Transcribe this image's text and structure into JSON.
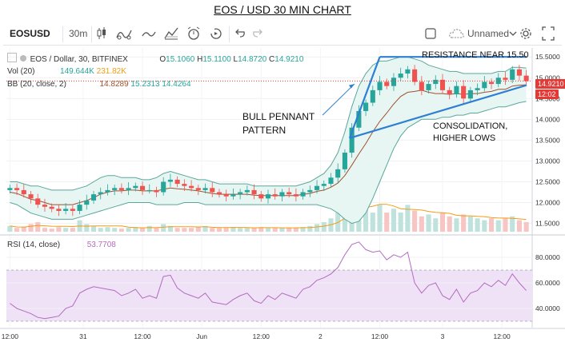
{
  "title": "EOS / USD 30 MIN CHART",
  "toolbar": {
    "symbol": "EOSUSD",
    "interval": "30m",
    "layout_name": "Unnamed",
    "icons": [
      "candles-icon",
      "indicators-icon",
      "line-icon",
      "compare-icon",
      "alert-icon",
      "replay-icon",
      "undo-icon",
      "redo-icon",
      "checkbox-icon",
      "cloud-icon",
      "chevron-down-icon",
      "gear-icon",
      "fullscreen-icon"
    ]
  },
  "legend": {
    "pair": "EOS / Dollar, 30, BITFINEX",
    "open_label": "O",
    "open": "15.1060",
    "high_label": "H",
    "high": "15.1100",
    "low_label": "L",
    "low": "14.8720",
    "close_label": "C",
    "close": "14.9210",
    "vol_label": "Vol (20)",
    "vol_1": "149.644K",
    "vol_2": "231.82K",
    "bb_label": "BB (20, close, 2)",
    "bb_1": "14.8289",
    "bb_2": "15.2313",
    "bb_3": "14.4264",
    "rsi_label": "RSI (14, close)",
    "rsi_value": "53.7708"
  },
  "price_tags": {
    "last": "14.9210",
    "countdown": "12:02"
  },
  "annotations": {
    "resistance": "RESISTANCE NEAR 15.50",
    "pennant_1": "BULL PENNANT",
    "pennant_2": "PATTERN",
    "consolidation_1": "CONSOLIDATION,",
    "consolidation_2": "HIGHER LOWS"
  },
  "colors": {
    "up": "#26a69a",
    "down": "#ef5350",
    "bb_fill": "#e7f5f3",
    "bb_band": "#5aa79c",
    "basis": "#a0522d",
    "vol_ma": "#f39c12",
    "rsi_line": "#b36cc0",
    "rsi_band": "#efe1f6",
    "annot_line": "#2e7fd1",
    "last_price": "#e53935"
  },
  "chart_data": [
    {
      "type": "candlestick",
      "title": "EOS / USD 30 MIN CHART",
      "series_label": "EOS / Dollar, 30, BITFINEX",
      "ylim": [
        11.3,
        15.6
      ],
      "y_ticks": [
        "15.5000",
        "15.0000",
        "14.5000",
        "14.0000",
        "13.5000",
        "13.0000",
        "12.5000",
        "12.0000",
        "11.5000"
      ],
      "x_ticks": [
        "12:00",
        "31",
        "12:00",
        "Jun",
        "12:00",
        "2",
        "12:00",
        "3",
        "12:00"
      ],
      "close": [
        12.35,
        12.3,
        12.2,
        12.1,
        11.95,
        11.9,
        11.85,
        11.8,
        11.85,
        11.8,
        11.95,
        12.05,
        12.2,
        12.25,
        12.3,
        12.35,
        12.3,
        12.35,
        12.4,
        12.3,
        12.3,
        12.25,
        12.5,
        12.55,
        12.45,
        12.4,
        12.35,
        12.3,
        12.35,
        12.25,
        12.2,
        12.15,
        12.2,
        12.25,
        12.3,
        12.2,
        12.1,
        12.2,
        12.15,
        12.25,
        12.2,
        12.15,
        12.25,
        12.3,
        12.4,
        12.45,
        12.6,
        12.8,
        13.2,
        13.8,
        14.2,
        14.4,
        14.7,
        14.9,
        14.8,
        15.0,
        15.1,
        15.2,
        14.9,
        14.7,
        14.85,
        14.95,
        14.7,
        14.6,
        14.8,
        14.5,
        14.7,
        14.75,
        14.9,
        14.85,
        15.0,
        14.95,
        15.2,
        15.05,
        14.92
      ],
      "bb_upper": [
        12.5,
        12.5,
        12.45,
        12.4,
        12.4,
        12.35,
        12.3,
        12.3,
        12.3,
        12.3,
        12.35,
        12.4,
        12.5,
        12.6,
        12.65,
        12.65,
        12.6,
        12.6,
        12.6,
        12.55,
        12.55,
        12.6,
        12.7,
        12.75,
        12.7,
        12.65,
        12.6,
        12.55,
        12.55,
        12.5,
        12.45,
        12.45,
        12.45,
        12.45,
        12.45,
        12.4,
        12.4,
        12.4,
        12.4,
        12.4,
        12.4,
        12.4,
        12.45,
        12.5,
        12.6,
        12.7,
        12.9,
        13.2,
        13.7,
        14.3,
        14.8,
        15.1,
        15.3,
        15.4,
        15.4,
        15.45,
        15.5,
        15.5,
        15.45,
        15.4,
        15.3,
        15.25,
        15.2,
        15.15,
        15.15,
        15.1,
        15.1,
        15.1,
        15.1,
        15.1,
        15.15,
        15.15,
        15.25,
        15.25,
        15.23
      ],
      "bb_lower": [
        12.0,
        11.95,
        11.85,
        11.75,
        11.7,
        11.65,
        11.6,
        11.6,
        11.6,
        11.6,
        11.65,
        11.7,
        11.75,
        11.8,
        11.85,
        11.9,
        11.95,
        12.0,
        12.0,
        12.0,
        12.0,
        11.95,
        11.95,
        11.95,
        11.95,
        12.0,
        12.0,
        12.0,
        11.95,
        11.95,
        11.95,
        11.95,
        11.95,
        11.95,
        11.95,
        11.95,
        11.95,
        11.95,
        11.95,
        11.95,
        11.95,
        11.95,
        11.95,
        11.95,
        11.95,
        11.9,
        11.85,
        11.75,
        11.6,
        11.5,
        11.55,
        11.75,
        12.1,
        12.5,
        12.9,
        13.3,
        13.6,
        13.8,
        13.9,
        14.0,
        14.0,
        14.0,
        14.05,
        14.05,
        14.1,
        14.1,
        14.15,
        14.15,
        14.2,
        14.25,
        14.3,
        14.3,
        14.35,
        14.4,
        14.43
      ],
      "bb_basis": [
        12.25,
        12.22,
        12.15,
        12.08,
        12.05,
        12.0,
        11.95,
        11.95,
        11.95,
        11.95,
        12.0,
        12.05,
        12.12,
        12.2,
        12.25,
        12.28,
        12.28,
        12.3,
        12.3,
        12.28,
        12.28,
        12.28,
        12.32,
        12.35,
        12.33,
        12.32,
        12.3,
        12.28,
        12.25,
        12.22,
        12.2,
        12.2,
        12.2,
        12.2,
        12.2,
        12.18,
        12.17,
        12.17,
        12.17,
        12.17,
        12.17,
        12.17,
        12.2,
        12.22,
        12.27,
        12.3,
        12.37,
        12.47,
        12.65,
        12.9,
        13.17,
        13.42,
        13.7,
        13.95,
        14.15,
        14.37,
        14.55,
        14.65,
        14.67,
        14.7,
        14.65,
        14.62,
        14.62,
        14.6,
        14.62,
        14.6,
        14.62,
        14.62,
        14.65,
        14.67,
        14.72,
        14.72,
        14.8,
        14.82,
        14.83
      ],
      "volume_relative": [
        0.15,
        0.1,
        0.12,
        0.2,
        0.25,
        0.1,
        0.08,
        0.12,
        0.1,
        0.1,
        0.3,
        0.2,
        0.15,
        0.1,
        0.12,
        0.1,
        0.08,
        0.1,
        0.12,
        0.1,
        0.15,
        0.1,
        0.2,
        0.15,
        0.1,
        0.1,
        0.1,
        0.12,
        0.15,
        0.1,
        0.1,
        0.1,
        0.12,
        0.1,
        0.1,
        0.1,
        0.12,
        0.1,
        0.1,
        0.1,
        0.1,
        0.1,
        0.12,
        0.15,
        0.2,
        0.25,
        0.35,
        0.5,
        0.9,
        1.0,
        0.8,
        0.6,
        0.5,
        0.7,
        0.5,
        0.6,
        0.5,
        0.7,
        0.55,
        0.4,
        0.45,
        0.35,
        0.5,
        0.4,
        0.35,
        0.45,
        0.4,
        0.35,
        0.3,
        0.35,
        0.3,
        0.35,
        0.4,
        0.3,
        0.25
      ],
      "resistance_level": 15.5
    },
    {
      "type": "line",
      "series_label": "RSI (14, close)",
      "ylim": [
        25,
        95
      ],
      "y_ticks": [
        "80.0000",
        "60.0000",
        "40.0000"
      ],
      "bands": [
        30,
        70
      ],
      "values": [
        44,
        40,
        38,
        36,
        33,
        32,
        33,
        34,
        40,
        42,
        52,
        55,
        57,
        56,
        55,
        54,
        50,
        52,
        55,
        48,
        50,
        48,
        65,
        66,
        56,
        52,
        50,
        48,
        52,
        45,
        44,
        43,
        47,
        50,
        52,
        46,
        44,
        50,
        47,
        52,
        50,
        48,
        55,
        57,
        62,
        64,
        67,
        72,
        82,
        90,
        92,
        86,
        84,
        85,
        78,
        82,
        80,
        84,
        60,
        52,
        58,
        60,
        50,
        47,
        55,
        45,
        52,
        54,
        60,
        57,
        62,
        58,
        67,
        60,
        54
      ]
    }
  ]
}
